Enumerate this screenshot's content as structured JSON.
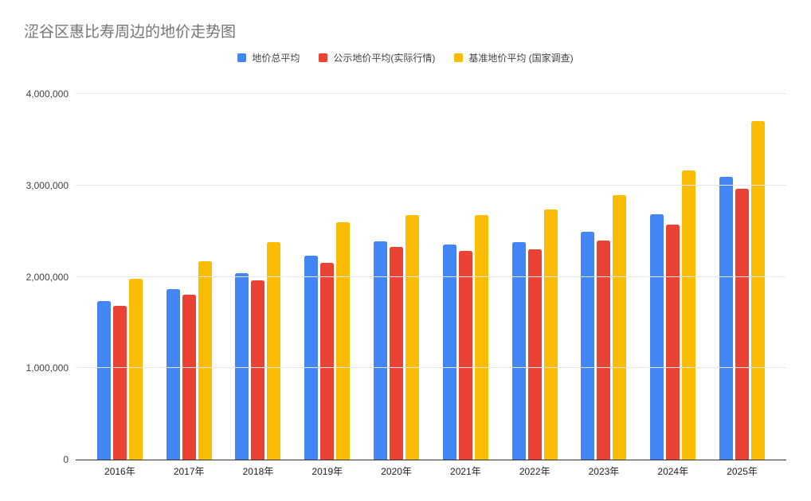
{
  "chart_data": {
    "type": "bar",
    "title": "涩谷区惠比寿周边的地价走势图",
    "categories": [
      "2016年",
      "2017年",
      "2018年",
      "2019年",
      "2020年",
      "2021年",
      "2022年",
      "2023年",
      "2024年",
      "2025年"
    ],
    "series": [
      {
        "name": "地价总平均",
        "color": "#4285F4",
        "values": [
          1735000,
          1865000,
          2035000,
          2230000,
          2390000,
          2350000,
          2380000,
          2490000,
          2680000,
          3095000
        ]
      },
      {
        "name": "公示地价平均(实际行情)",
        "color": "#EA4335",
        "values": [
          1685000,
          1800000,
          1960000,
          2150000,
          2325000,
          2285000,
          2300000,
          2400000,
          2570000,
          2960000
        ]
      },
      {
        "name": "基准地价平均 (国家调查)",
        "color": "#FBBC04",
        "values": [
          1980000,
          2170000,
          2380000,
          2595000,
          2675000,
          2675000,
          2740000,
          2890000,
          3160000,
          3700000
        ]
      }
    ],
    "xlabel": "",
    "ylabel": "",
    "ylim": [
      0,
      4000000
    ],
    "y_ticks": [
      {
        "value": 0,
        "label": "0"
      },
      {
        "value": 1000000,
        "label": "1,000,000"
      },
      {
        "value": 2000000,
        "label": "2,000,000"
      },
      {
        "value": 3000000,
        "label": "3,000,000"
      },
      {
        "value": 4000000,
        "label": "4,000,000"
      }
    ],
    "grid": "horizontal",
    "legend_position": "top-center"
  },
  "colors": {
    "background": "#ffffff",
    "title_text": "#757575",
    "axis_text": "#424242",
    "x_axis_text": "#222222",
    "gridline": "#e6e6e6",
    "baseline": "#333333"
  }
}
